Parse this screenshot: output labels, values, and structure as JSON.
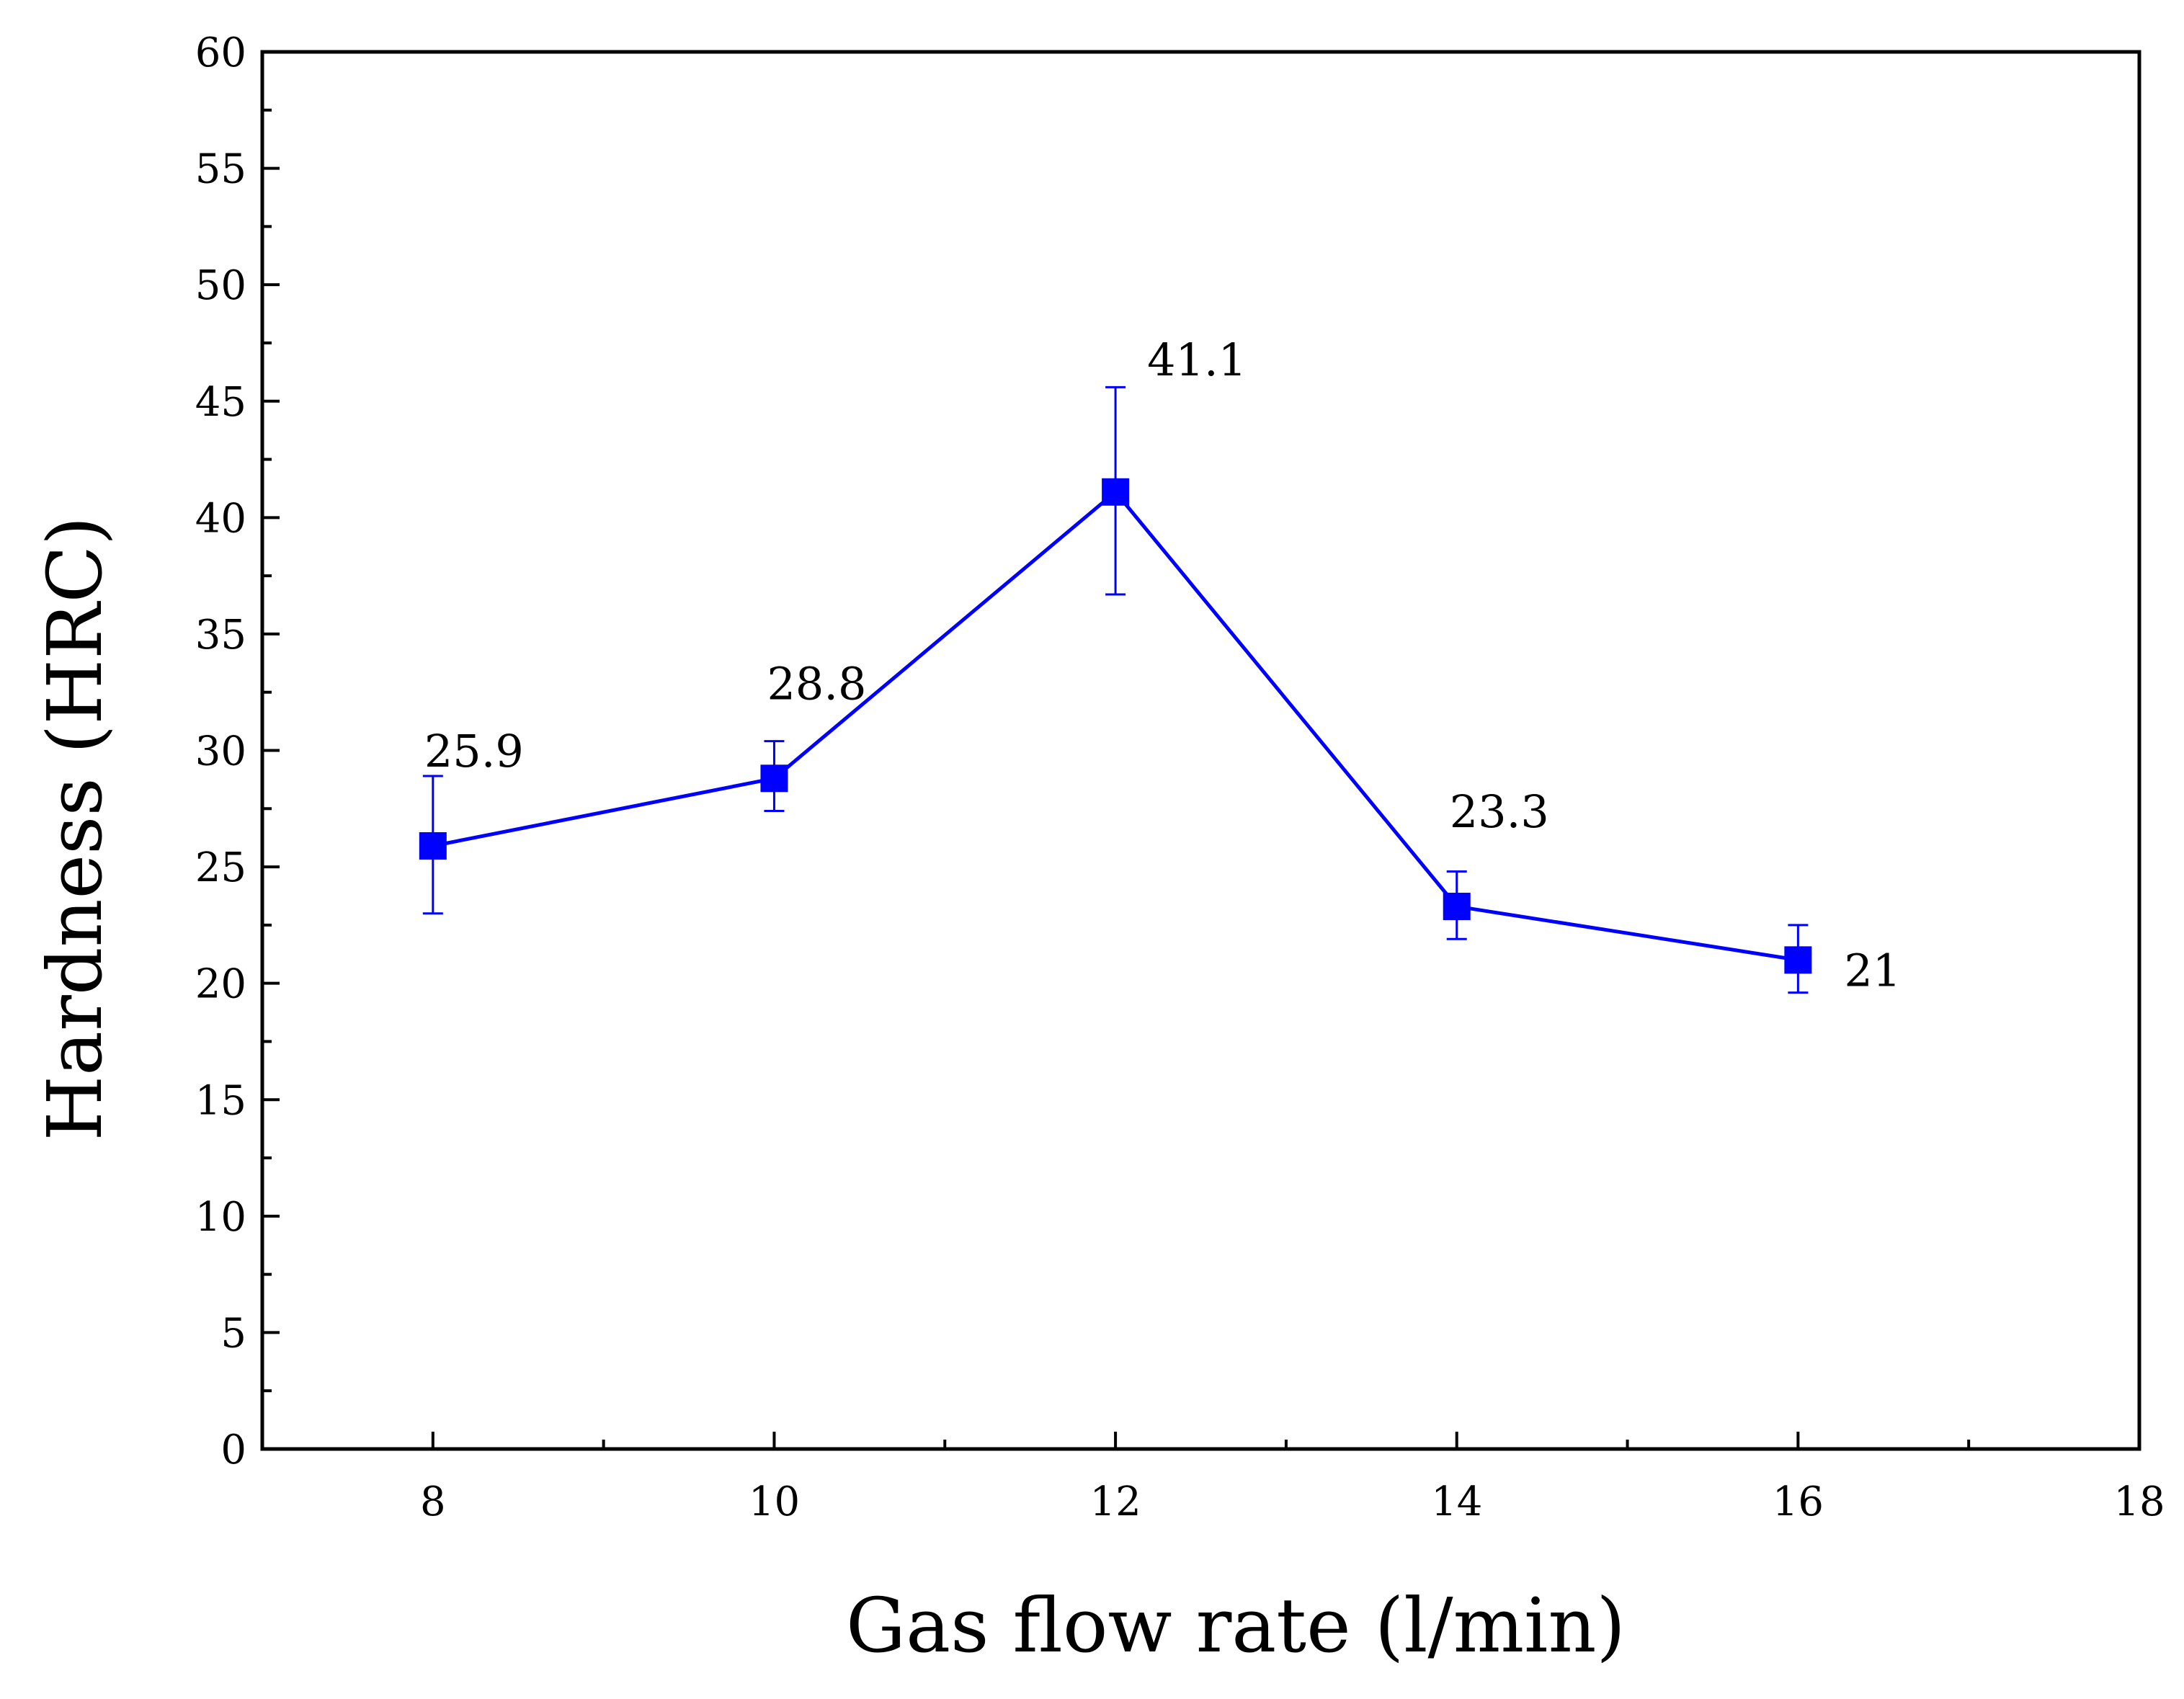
{
  "chart_data": {
    "type": "line",
    "title": "",
    "xlabel": "Gas flow rate (l/min)",
    "ylabel": "Hardness (HRC)",
    "xlim": [
      7,
      18
    ],
    "ylim": [
      0,
      60
    ],
    "x_ticks": [
      8,
      10,
      12,
      14,
      16,
      18
    ],
    "y_ticks": [
      0,
      5,
      10,
      15,
      20,
      25,
      30,
      35,
      40,
      45,
      50,
      55,
      60
    ],
    "grid": false,
    "series": [
      {
        "name": "Hardness",
        "color": "#0000ff",
        "marker": "square",
        "x": [
          8,
          10,
          12,
          14,
          16
        ],
        "values": [
          25.9,
          28.8,
          41.1,
          23.3,
          21
        ],
        "error_low": [
          23.0,
          27.4,
          36.7,
          21.9,
          19.6
        ],
        "error_high": [
          28.9,
          30.4,
          45.6,
          24.8,
          22.5
        ],
        "labels": [
          "25.9",
          "28.8",
          "41.1",
          "23.3",
          "21"
        ]
      }
    ]
  }
}
